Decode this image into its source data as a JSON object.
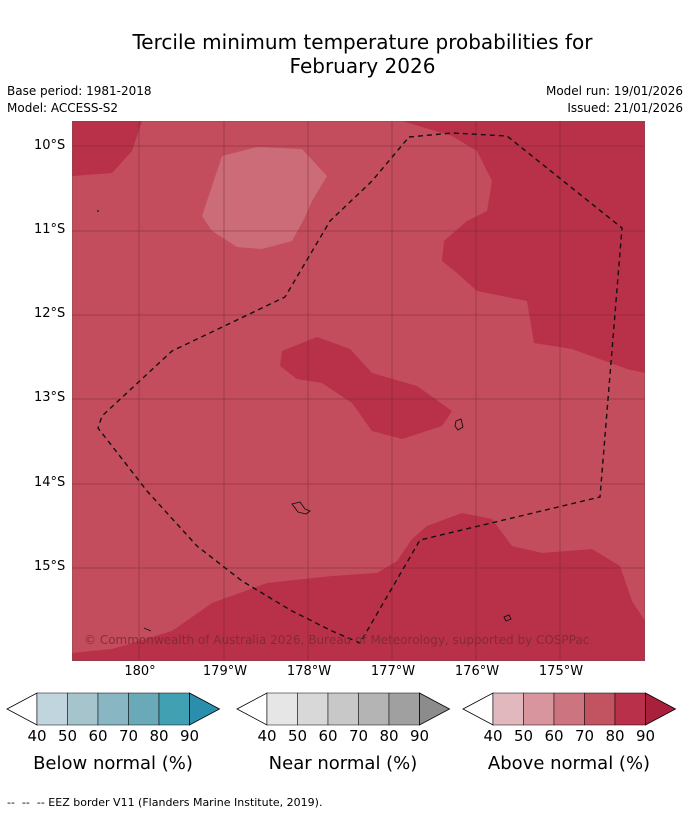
{
  "title_line1": "Tercile minimum temperature probabilities for",
  "title_line2": "February 2026",
  "base_period": "Base period: 1981-2018",
  "model": "Model: ACCESS-S2",
  "model_run": "Model run: 19/01/2026",
  "issued": "Issued: 21/01/2026",
  "lat_labels": [
    "10°S",
    "11°S",
    "12°S",
    "13°S",
    "14°S",
    "15°S"
  ],
  "lon_labels": [
    "180°",
    "179°W",
    "178°W",
    "177°W",
    "176°W",
    "175°W"
  ],
  "copyright": "© Commonwealth of Australia 2026, Bureau of Meteorology, supported by COSPPac",
  "colorbars": [
    {
      "title": "Below normal (%)",
      "ticks": [
        "40",
        "50",
        "60",
        "70",
        "80",
        "90"
      ],
      "colors": [
        "#ffffff",
        "#c0d5de",
        "#a6c4cc",
        "#89b6c3",
        "#6aaab8",
        "#42a0b3",
        "#2a8fad"
      ]
    },
    {
      "title": "Near normal (%)",
      "ticks": [
        "40",
        "50",
        "60",
        "70",
        "80",
        "90"
      ],
      "colors": [
        "#ffffff",
        "#e6e6e6",
        "#d8d8d8",
        "#c8c8c8",
        "#b4b4b4",
        "#a0a0a0",
        "#8c8c8c"
      ]
    },
    {
      "title": "Above normal (%)",
      "ticks": [
        "40",
        "50",
        "60",
        "70",
        "80",
        "90"
      ],
      "colors": [
        "#ffffff",
        "#e0b8be",
        "#d8959d",
        "#cc7480",
        "#c25360",
        "#b9304a",
        "#a8203c"
      ]
    }
  ],
  "map_colors": {
    "above_70": "#c34d5c",
    "above_80": "#b93049",
    "above_60": "#cc6c78"
  },
  "footer": "--  --  -- EEZ border V11 (Flanders Marine Institute, 2019)."
}
